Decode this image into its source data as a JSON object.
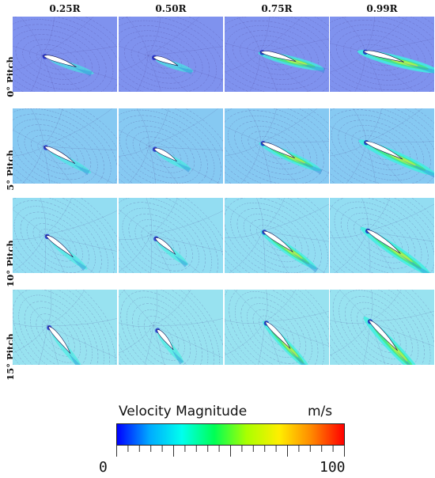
{
  "columns": [
    "0.25R",
    "0.50R",
    "0.75R",
    "0.99R"
  ],
  "rows": [
    "0° Pitch",
    "5° Pitch",
    "10° Pitch",
    "15° Pitch"
  ],
  "legend": {
    "title": "Velocity Magnitude",
    "unit": "m/s",
    "min": "0",
    "max": "100",
    "colors": [
      "#0000ff",
      "#00aaff",
      "#00ffee",
      "#00ff55",
      "#aaff00",
      "#ffee00",
      "#ff8800",
      "#ff0000"
    ]
  },
  "background_colors": {
    "row_0": "#7f92ee",
    "row_1": "#86c9f2",
    "row_2": "#93ddf2",
    "row_3": "#98e2f0"
  }
}
